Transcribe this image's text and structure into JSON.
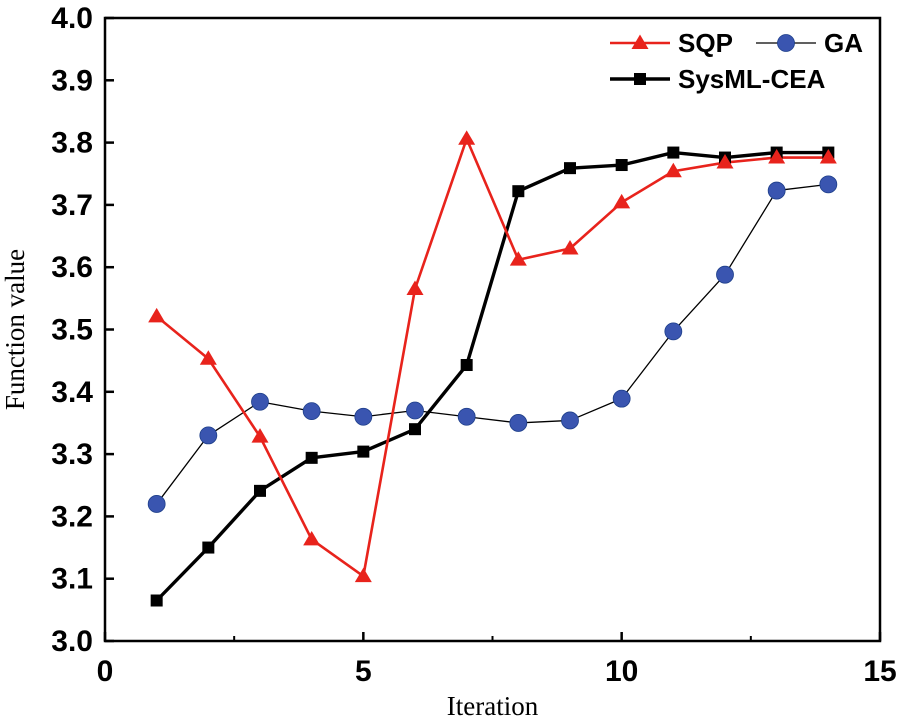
{
  "chart_data": {
    "type": "line",
    "title": "",
    "xlabel": "Iteration",
    "ylabel": "Function value",
    "xlim": [
      0,
      15
    ],
    "ylim": [
      3.0,
      4.0
    ],
    "x_ticks": [
      0,
      5,
      10,
      15
    ],
    "x_tick_labels": [
      "0",
      "5",
      "10",
      "15"
    ],
    "x_minor_ticks": [
      2.5,
      7.5,
      12.5
    ],
    "y_ticks": [
      3.0,
      3.1,
      3.2,
      3.3,
      3.4,
      3.5,
      3.6,
      3.7,
      3.8,
      3.9,
      4.0
    ],
    "y_tick_labels": [
      "3.0",
      "3.1",
      "3.2",
      "3.3",
      "3.4",
      "3.5",
      "3.6",
      "3.7",
      "3.8",
      "3.9",
      "4.0"
    ],
    "grid": false,
    "legend_position": "top-right",
    "x": [
      1,
      2,
      3,
      4,
      5,
      6,
      7,
      8,
      9,
      10,
      11,
      12,
      13,
      14
    ],
    "series": [
      {
        "name": "SQP",
        "color": "#e8231c",
        "marker": "triangle",
        "values": [
          3.521,
          3.453,
          3.328,
          3.163,
          3.104,
          3.565,
          3.806,
          3.612,
          3.63,
          3.704,
          3.754,
          3.768,
          3.776,
          3.776
        ]
      },
      {
        "name": "GA",
        "color": "#3a55b0",
        "line_color": "#000000",
        "marker": "circle",
        "values": [
          3.22,
          3.33,
          3.384,
          3.369,
          3.36,
          3.37,
          3.36,
          3.35,
          3.354,
          3.389,
          3.497,
          3.588,
          3.723,
          3.733
        ]
      },
      {
        "name": "SysML-CEA",
        "color": "#000000",
        "marker": "square",
        "values": [
          3.065,
          3.15,
          3.241,
          3.294,
          3.304,
          3.34,
          3.443,
          3.722,
          3.759,
          3.764,
          3.784,
          3.776,
          3.784,
          3.784
        ]
      }
    ]
  }
}
